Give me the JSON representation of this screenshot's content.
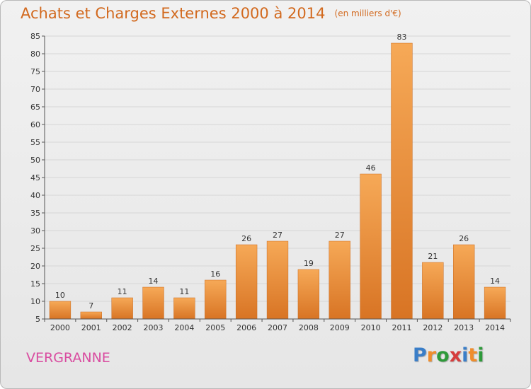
{
  "title": "Achats et Charges Externes 2000 à 2014",
  "unit_label": "(en milliers d'€)",
  "commune": "VERGRANNE",
  "logo": {
    "text": "Proxiti",
    "letters": [
      {
        "ch": "P",
        "color": "#3a7ec8"
      },
      {
        "ch": "r",
        "color": "#ef8d2c"
      },
      {
        "ch": "o",
        "color": "#2e9a3a"
      },
      {
        "ch": "x",
        "color": "#d63d3d"
      },
      {
        "ch": "i",
        "color": "#3a7ec8"
      },
      {
        "ch": "t",
        "color": "#ef8d2c"
      },
      {
        "ch": "i",
        "color": "#2e9a3a"
      }
    ]
  },
  "colors": {
    "title": "#d2691e",
    "commune": "#d94ca0",
    "bar_light": "#f6a957",
    "bar_dark": "#d87424",
    "grid": "#d6d6d6"
  },
  "chart_data": {
    "type": "bar",
    "categories": [
      "2000",
      "2001",
      "2002",
      "2003",
      "2004",
      "2005",
      "2006",
      "2007",
      "2008",
      "2009",
      "2010",
      "2011",
      "2012",
      "2013",
      "2014"
    ],
    "values": [
      10,
      7,
      11,
      14,
      11,
      16,
      26,
      27,
      19,
      27,
      46,
      83,
      21,
      26,
      14
    ],
    "ylim": [
      5,
      85
    ],
    "yticks": [
      5,
      10,
      15,
      20,
      25,
      30,
      35,
      40,
      45,
      50,
      55,
      60,
      65,
      70,
      75,
      80,
      85
    ],
    "grid": true,
    "data_labels": true
  }
}
